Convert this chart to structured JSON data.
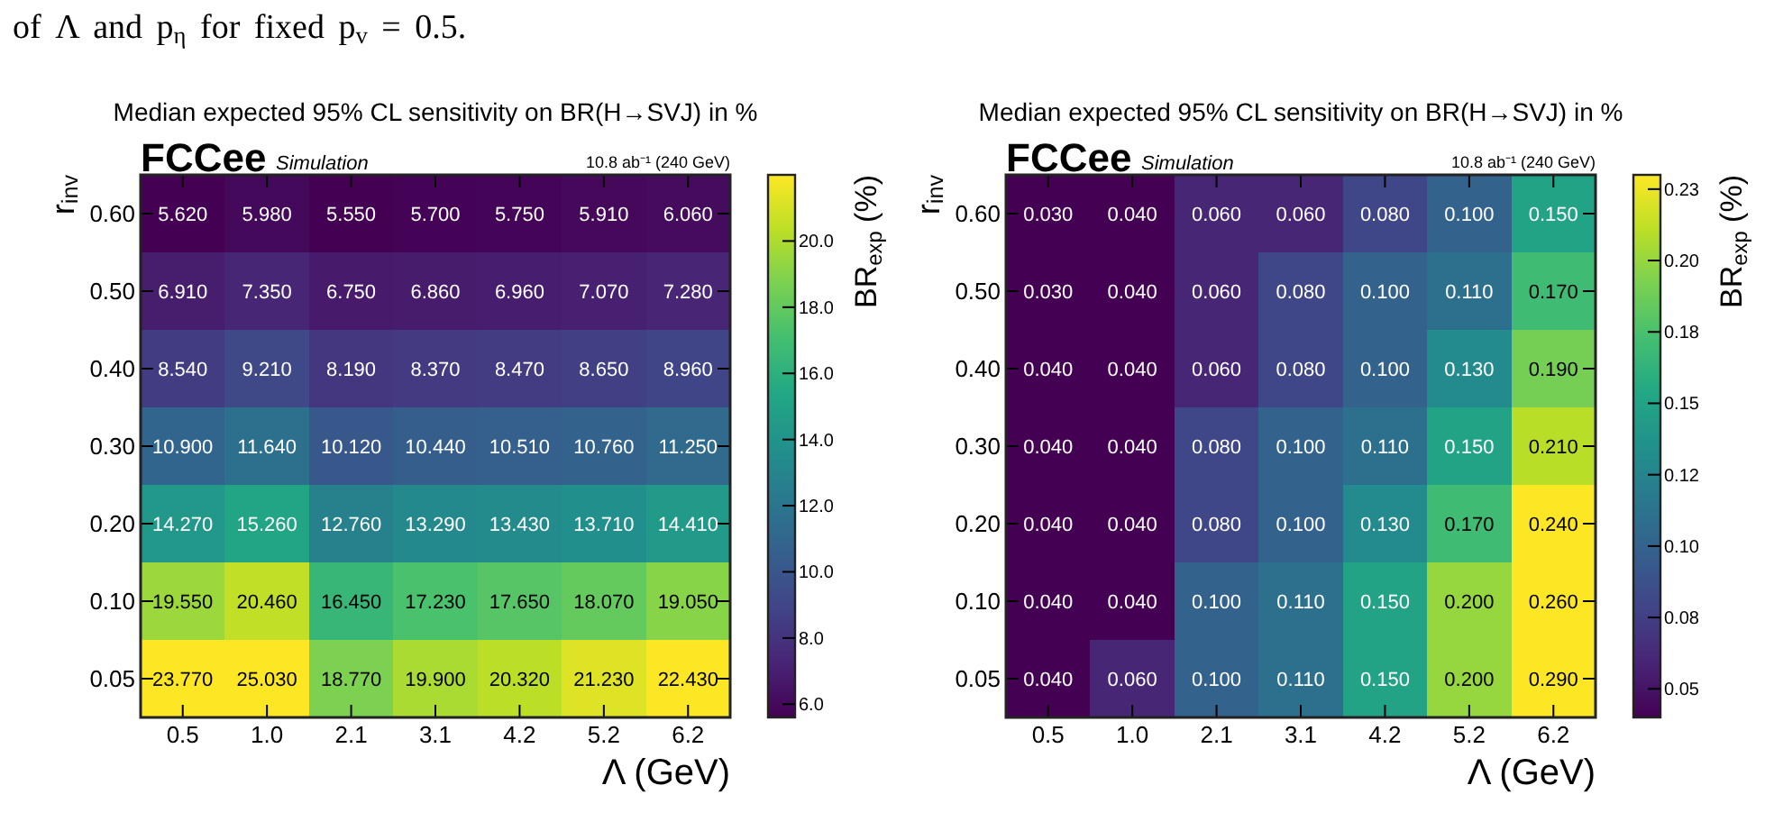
{
  "chart_data": [
    {
      "type": "heatmap",
      "title": "Median expected 95% CL sensitivity on BR(H→SVJ) in %",
      "xlabel": "Λ (GeV)",
      "ylabel": "r$_{inv}$",
      "clabel": "BR$_{exp}$ (%)",
      "annotations": [
        "FCCee",
        "Simulation",
        "10.8 ab⁻¹ (240 GeV)",
        "of Λ and p$_{η}$ for fixed p$_{v}$ = 0.5."
      ],
      "categories": [
        "0.5",
        "1.0",
        "2.1",
        "3.1",
        "4.2",
        "5.2",
        "6.2"
      ],
      "y_categories": [
        "0.60",
        "0.50",
        "0.40",
        "0.30",
        "0.20",
        "0.10",
        "0.05"
      ],
      "cells": [
        [
          5.62,
          5.98,
          5.55,
          5.7,
          5.75,
          5.91,
          6.06
        ],
        [
          6.91,
          7.35,
          6.75,
          6.86,
          6.96,
          7.07,
          7.28
        ],
        [
          8.54,
          9.21,
          8.19,
          8.37,
          8.47,
          8.65,
          8.96
        ],
        [
          10.9,
          11.64,
          10.12,
          10.44,
          10.51,
          10.76,
          11.25
        ],
        [
          14.27,
          15.26,
          12.76,
          13.29,
          13.43,
          13.71,
          14.41
        ],
        [
          19.55,
          20.46,
          16.45,
          17.23,
          17.65,
          18.07,
          19.05
        ],
        [
          23.77,
          25.03,
          18.77,
          19.9,
          20.32,
          21.23,
          22.43
        ]
      ],
      "cell_labels": [
        [
          "5.620",
          "5.980",
          "5.550",
          "5.700",
          "5.750",
          "5.910",
          "6.060"
        ],
        [
          "6.910",
          "7.350",
          "6.750",
          "6.860",
          "6.960",
          "7.070",
          "7.280"
        ],
        [
          "8.540",
          "9.210",
          "8.190",
          "8.370",
          "8.470",
          "8.650",
          "8.960"
        ],
        [
          "10.900",
          "11.640",
          "10.120",
          "10.440",
          "10.510",
          "10.760",
          "11.250"
        ],
        [
          "14.270",
          "15.260",
          "12.760",
          "13.290",
          "13.430",
          "13.710",
          "14.410"
        ],
        [
          "19.550",
          "20.460",
          "16.450",
          "17.230",
          "17.650",
          "18.070",
          "19.050"
        ],
        [
          "23.770",
          "25.030",
          "18.770",
          "19.900",
          "20.320",
          "21.230",
          "22.430"
        ]
      ],
      "clim": [
        5.6,
        22.0
      ],
      "cticks": [
        {
          "value": 6,
          "label": "6.0"
        },
        {
          "value": 8,
          "label": "8.0"
        },
        {
          "value": 10,
          "label": "10.0"
        },
        {
          "value": 12,
          "label": "12.0"
        },
        {
          "value": 14,
          "label": "14.0"
        },
        {
          "value": 16,
          "label": "16.0"
        },
        {
          "value": 18,
          "label": "18.0"
        },
        {
          "value": 20,
          "label": "20.0"
        }
      ]
    },
    {
      "type": "heatmap",
      "title": "Median expected 95% CL sensitivity on BR(H→SVJ) in %",
      "xlabel": "Λ (GeV)",
      "ylabel": "r$_{inv}$",
      "clabel": "BR$_{exp}$ (%)",
      "annotations": [
        "FCCee",
        "Simulation",
        "10.8 ab⁻¹ (240 GeV)"
      ],
      "categories": [
        "0.5",
        "1.0",
        "2.1",
        "3.1",
        "4.2",
        "5.2",
        "6.2"
      ],
      "y_categories": [
        "0.60",
        "0.50",
        "0.40",
        "0.30",
        "0.20",
        "0.10",
        "0.05"
      ],
      "cells": [
        [
          0.03,
          0.04,
          0.06,
          0.06,
          0.08,
          0.1,
          0.15
        ],
        [
          0.03,
          0.04,
          0.06,
          0.08,
          0.1,
          0.11,
          0.17
        ],
        [
          0.04,
          0.04,
          0.06,
          0.08,
          0.1,
          0.13,
          0.19
        ],
        [
          0.04,
          0.04,
          0.08,
          0.1,
          0.11,
          0.15,
          0.21
        ],
        [
          0.04,
          0.04,
          0.08,
          0.1,
          0.13,
          0.17,
          0.24
        ],
        [
          0.04,
          0.04,
          0.1,
          0.11,
          0.15,
          0.2,
          0.26
        ],
        [
          0.04,
          0.06,
          0.1,
          0.11,
          0.15,
          0.2,
          0.29
        ]
      ],
      "cell_labels": [
        [
          "0.030",
          "0.040",
          "0.060",
          "0.060",
          "0.080",
          "0.100",
          "0.150"
        ],
        [
          "0.030",
          "0.040",
          "0.060",
          "0.080",
          "0.100",
          "0.110",
          "0.170"
        ],
        [
          "0.040",
          "0.040",
          "0.060",
          "0.080",
          "0.100",
          "0.130",
          "0.190"
        ],
        [
          "0.040",
          "0.040",
          "0.080",
          "0.100",
          "0.110",
          "0.150",
          "0.210"
        ],
        [
          "0.040",
          "0.040",
          "0.080",
          "0.100",
          "0.130",
          "0.170",
          "0.240"
        ],
        [
          "0.040",
          "0.040",
          "0.100",
          "0.110",
          "0.150",
          "0.200",
          "0.260"
        ],
        [
          "0.040",
          "0.060",
          "0.100",
          "0.110",
          "0.150",
          "0.200",
          "0.290"
        ]
      ],
      "clim": [
        0.04,
        0.23
      ],
      "cticks": [
        {
          "value": 0.05,
          "label": "0.05"
        },
        {
          "value": 0.075,
          "label": "0.08"
        },
        {
          "value": 0.1,
          "label": "0.10"
        },
        {
          "value": 0.125,
          "label": "0.12"
        },
        {
          "value": 0.15,
          "label": "0.15"
        },
        {
          "value": 0.175,
          "label": "0.18"
        },
        {
          "value": 0.2,
          "label": "0.20"
        },
        {
          "value": 0.225,
          "label": "0.23"
        }
      ]
    }
  ]
}
